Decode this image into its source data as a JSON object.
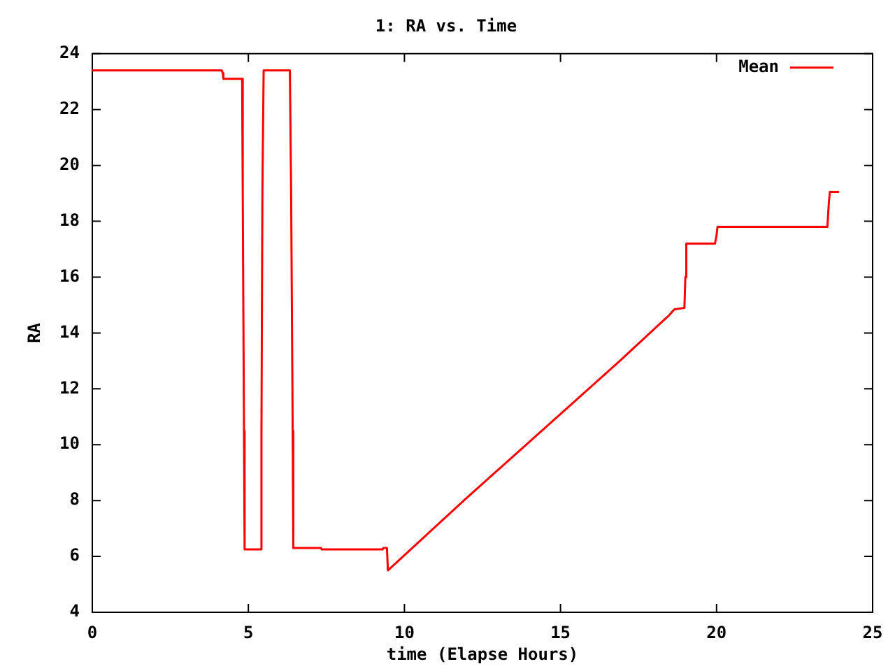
{
  "chart_data": {
    "type": "line",
    "title": "1: RA vs. Time",
    "xlabel": "time (Elapse Hours)",
    "ylabel": "RA",
    "x": [
      0,
      4.15,
      4.18,
      4.2,
      4.8,
      4.82,
      4.86,
      4.88,
      5.4,
      5.42,
      5.45,
      5.49,
      6.33,
      6.37,
      6.42,
      6.44,
      7.33,
      7.35,
      9.3,
      9.32,
      9.44,
      9.47,
      12,
      15,
      16.9,
      18.3,
      18.45,
      18.65,
      18.97,
      19.0,
      19.03,
      19.95,
      20.0,
      20.03,
      23.55,
      23.6,
      23.63,
      23.9
    ],
    "series": [
      {
        "name": "Mean",
        "color": "#ff0000",
        "values": [
          23.4,
          23.4,
          23.3,
          23.1,
          23.1,
          19.0,
          10.5,
          6.25,
          6.25,
          10.5,
          19.1,
          23.4,
          23.4,
          19.1,
          10.5,
          6.3,
          6.3,
          6.25,
          6.25,
          6.3,
          6.3,
          5.5,
          8.1,
          11.1,
          13.0,
          14.45,
          14.6,
          14.85,
          14.9,
          16.0,
          17.2,
          17.2,
          17.5,
          17.8,
          17.8,
          18.7,
          19.05,
          19.05
        ]
      }
    ],
    "xlim": [
      0,
      25
    ],
    "xticks": [
      0,
      5,
      10,
      15,
      20,
      25
    ],
    "ylim": [
      4,
      24
    ],
    "yticks": [
      4,
      6,
      8,
      10,
      12,
      14,
      16,
      18,
      20,
      22,
      24
    ],
    "grid": false,
    "legend": "top right",
    "marker": "none",
    "line_style": "solid"
  }
}
